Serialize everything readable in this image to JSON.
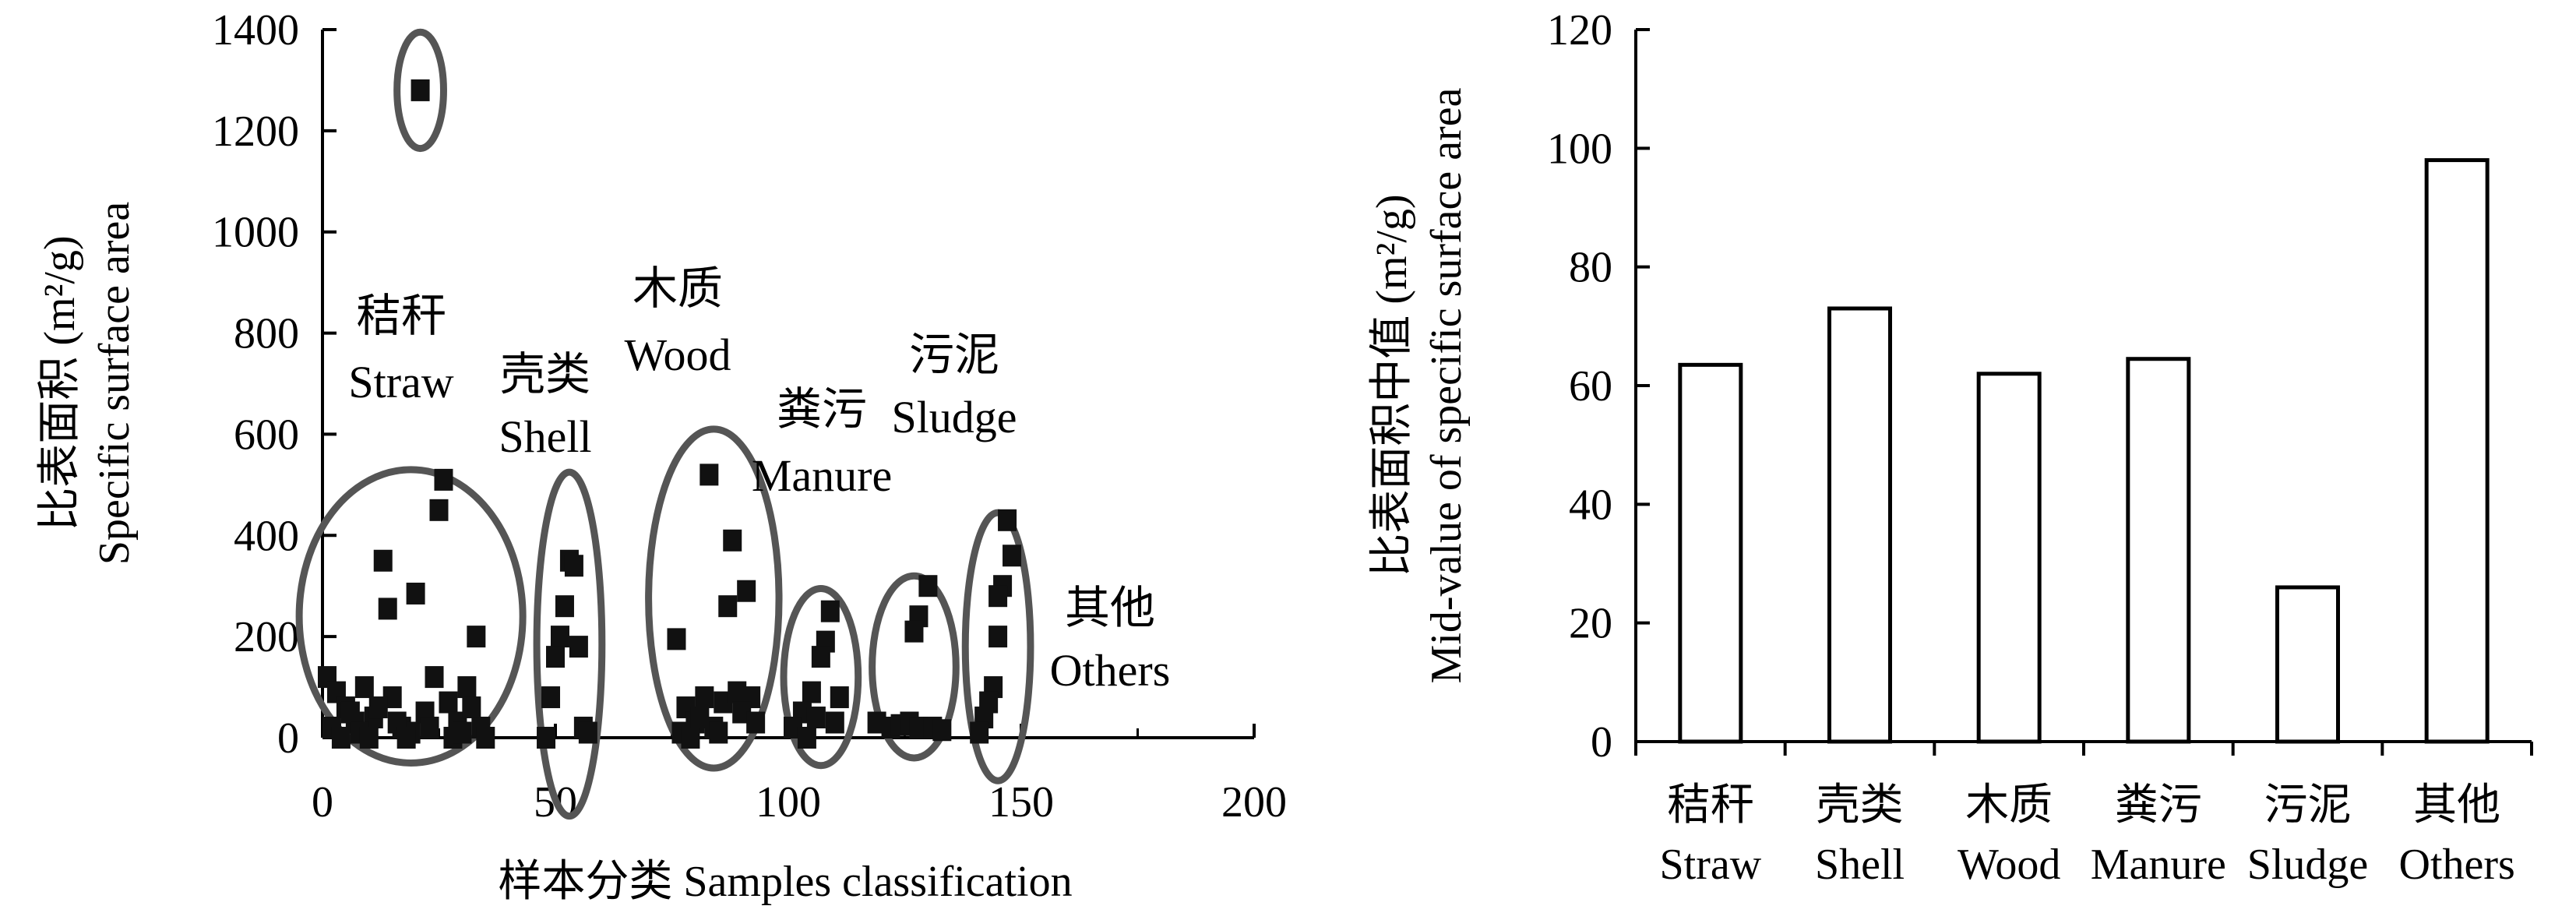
{
  "chart_data": [
    {
      "type": "scatter",
      "ylabel": [
        "比表面积 (m²/g)",
        "Specific surface area"
      ],
      "xlabel": "样本分类 Samples classification",
      "xlim": [
        0,
        200
      ],
      "ylim": [
        0,
        1400
      ],
      "xticks": [
        "0",
        "50",
        "100",
        "150",
        "200"
      ],
      "yticks": [
        "0",
        "200",
        "400",
        "600",
        "800",
        "1000",
        "1200",
        "1400"
      ],
      "annotations": [
        {
          "cn": "秸秆",
          "en": "Straw"
        },
        {
          "cn": "壳类",
          "en": "Shell"
        },
        {
          "cn": "木质",
          "en": "Wood"
        },
        {
          "cn": "粪污",
          "en": "Manure"
        },
        {
          "cn": "污泥",
          "en": "Sludge"
        },
        {
          "cn": "其他",
          "en": "Others"
        }
      ],
      "groups": [
        {
          "label": "Straw",
          "points": [
            [
              21,
              1280
            ],
            [
              13,
              350
            ],
            [
              20,
              285
            ],
            [
              14,
              255
            ],
            [
              25,
              450
            ],
            [
              26,
              510
            ],
            [
              33,
              200
            ],
            [
              1,
              120
            ],
            [
              3,
              90
            ],
            [
              5,
              60
            ],
            [
              7,
              30
            ],
            [
              9,
              100
            ],
            [
              11,
              40
            ],
            [
              15,
              80
            ],
            [
              17,
              20
            ],
            [
              19,
              10
            ],
            [
              22,
              50
            ],
            [
              24,
              120
            ],
            [
              27,
              70
            ],
            [
              29,
              30
            ],
            [
              31,
              100
            ],
            [
              2,
              20
            ],
            [
              4,
              0
            ],
            [
              6,
              50
            ],
            [
              8,
              10
            ],
            [
              10,
              0
            ],
            [
              12,
              60
            ],
            [
              16,
              30
            ],
            [
              18,
              0
            ],
            [
              23,
              20
            ],
            [
              28,
              0
            ],
            [
              30,
              10
            ],
            [
              32,
              60
            ],
            [
              34,
              20
            ],
            [
              35,
              0
            ]
          ]
        },
        {
          "label": "Shell",
          "points": [
            [
              53,
              350
            ],
            [
              54,
              340
            ],
            [
              52,
              260
            ],
            [
              51,
              200
            ],
            [
              50,
              160
            ],
            [
              49,
              80
            ],
            [
              48,
              0
            ],
            [
              56,
              20
            ],
            [
              57,
              10
            ],
            [
              55,
              180
            ]
          ]
        },
        {
          "label": "Wood",
          "points": [
            [
              83,
              520
            ],
            [
              88,
              390
            ],
            [
              91,
              290
            ],
            [
              87,
              260
            ],
            [
              76,
              195
            ],
            [
              78,
              60
            ],
            [
              80,
              30
            ],
            [
              82,
              80
            ],
            [
              84,
              20
            ],
            [
              86,
              70
            ],
            [
              89,
              90
            ],
            [
              92,
              80
            ],
            [
              77,
              10
            ],
            [
              79,
              0
            ],
            [
              81,
              40
            ],
            [
              85,
              10
            ],
            [
              90,
              50
            ],
            [
              93,
              30
            ]
          ]
        },
        {
          "label": "Manure",
          "points": [
            [
              109,
              250
            ],
            [
              108,
              190
            ],
            [
              107,
              160
            ],
            [
              111,
              80
            ],
            [
              105,
              90
            ],
            [
              103,
              50
            ],
            [
              106,
              40
            ],
            [
              101,
              20
            ],
            [
              110,
              30
            ],
            [
              104,
              0
            ]
          ]
        },
        {
          "label": "Sludge",
          "points": [
            [
              130,
              300
            ],
            [
              128,
              240
            ],
            [
              127,
              210
            ],
            [
              119,
              30
            ],
            [
              122,
              20
            ],
            [
              124,
              25
            ],
            [
              126,
              30
            ],
            [
              128,
              20
            ],
            [
              131,
              20
            ],
            [
              133,
              15
            ]
          ]
        },
        {
          "label": "Others",
          "points": [
            [
              147,
              430
            ],
            [
              148,
              360
            ],
            [
              146,
              300
            ],
            [
              145,
              280
            ],
            [
              145,
              200
            ],
            [
              144,
              100
            ],
            [
              143,
              70
            ],
            [
              142,
              40
            ],
            [
              141,
              10
            ]
          ]
        }
      ]
    },
    {
      "type": "bar",
      "ylabel": [
        "比表面积中值 (m²/g)",
        "Mid-value of specific surface area"
      ],
      "ylim": [
        0,
        120
      ],
      "yticks": [
        "0",
        "20",
        "40",
        "60",
        "80",
        "100",
        "120"
      ],
      "categories": [
        {
          "cn": "秸秆",
          "en": "Straw"
        },
        {
          "cn": "壳类",
          "en": "Shell"
        },
        {
          "cn": "木质",
          "en": "Wood"
        },
        {
          "cn": "粪污",
          "en": "Manure"
        },
        {
          "cn": "污泥",
          "en": "Sludge"
        },
        {
          "cn": "其他",
          "en": "Others"
        }
      ],
      "values": [
        63.5,
        73,
        62,
        64.5,
        26,
        98
      ]
    }
  ]
}
